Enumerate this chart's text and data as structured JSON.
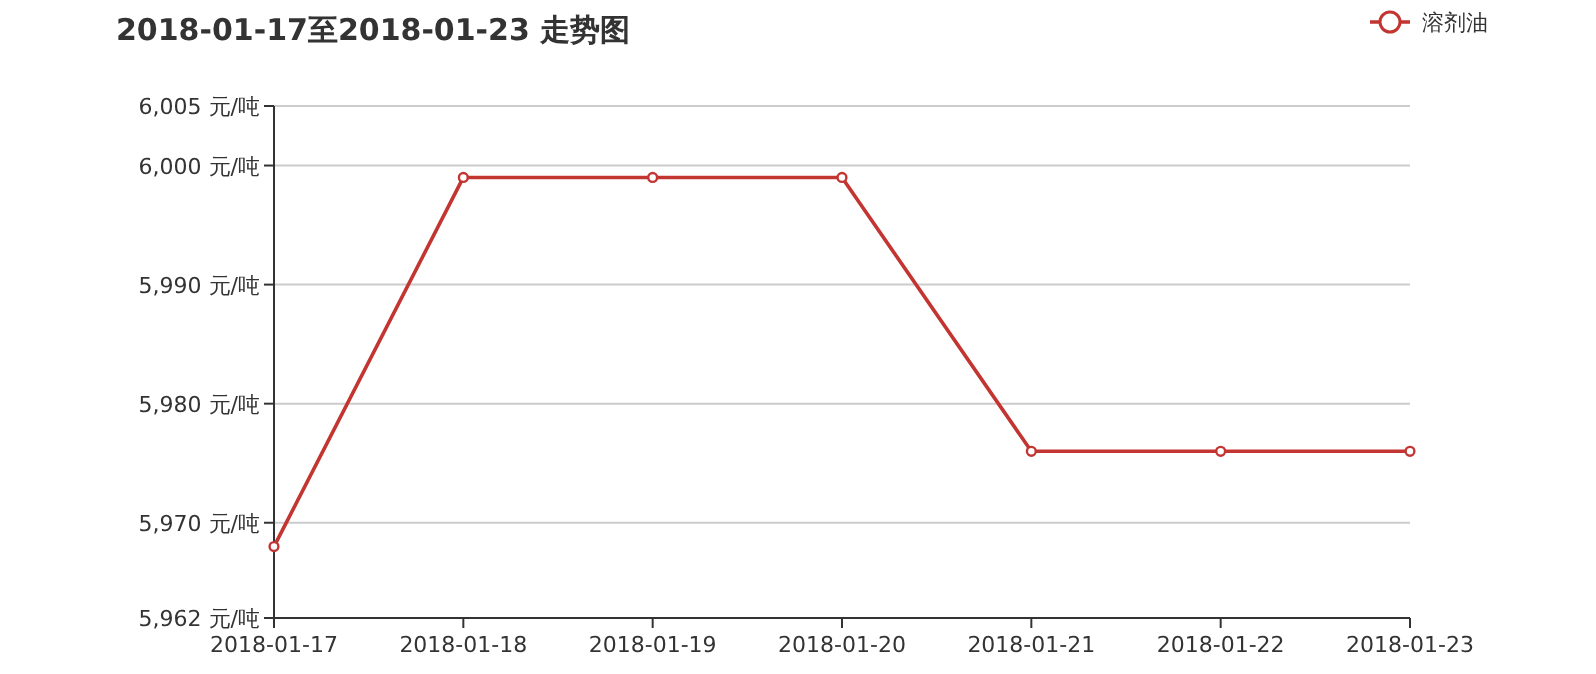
{
  "chart_data": {
    "type": "line",
    "title": "2018-01-17至2018-01-23 走势图",
    "categories": [
      "2018-01-17",
      "2018-01-18",
      "2018-01-19",
      "2018-01-20",
      "2018-01-21",
      "2018-01-22",
      "2018-01-23"
    ],
    "series": [
      {
        "name": "溶剂油",
        "color": "#c23531",
        "values": [
          5968,
          5999,
          5999,
          5999,
          5976,
          5976,
          5976
        ]
      }
    ],
    "ylim": [
      5962,
      6005
    ],
    "yticks": [
      {
        "value": 5962,
        "label": "5,962 元/吨"
      },
      {
        "value": 5970,
        "label": "5,970 元/吨"
      },
      {
        "value": 5980,
        "label": "5,980 元/吨"
      },
      {
        "value": 5990,
        "label": "5,990 元/吨"
      },
      {
        "value": 6000,
        "label": "6,000 元/吨"
      },
      {
        "value": 6005,
        "label": "6,005 元/吨"
      }
    ],
    "grid": "y",
    "legend": "top right",
    "marker": "circle",
    "line_style": "solid"
  }
}
